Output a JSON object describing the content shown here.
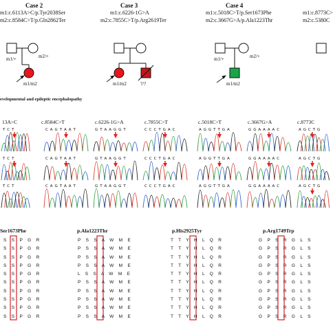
{
  "colors": {
    "affected_female": "#e8151b",
    "affected_male_deceased": "#c8141a",
    "affected_male": "#1aa54a",
    "box": "#d11e26",
    "arrow": "#e2231a",
    "trace_a": "#2e9e3e",
    "trace_c": "#3060c8",
    "trace_g": "#222222",
    "trace_t": "#d63a2f"
  },
  "cases": [
    {
      "title": "Case 2",
      "m1": "m1:c.6113A>C/p.Tyr2038Ser",
      "m2": "m2:c.8584C>T/p.Gln2862Ter",
      "father": "m1/+",
      "mother": "m2/+",
      "child": "m1/m2"
    },
    {
      "title": "Case 3",
      "m1": "m1:c.6226-1G>A",
      "m2": "m2:c.7855C>T/p.Arg2619Ter",
      "child1": "m1/m2",
      "child2": "?/?"
    },
    {
      "title": "Case 4",
      "m1": "m1:c.5018C>T/p.Ser1673Phe",
      "m2": "m2:c.3667G>A/p.Ala1223Thr",
      "father": "m1/+",
      "mother": "m2/+",
      "child": "m1/m2"
    },
    {
      "m1": "m1:c.8773C>",
      "m2": "m2:c.5380C"
    }
  ],
  "legend_text": "evelopmental and epileptic encephalopathy",
  "chrom_columns": [
    {
      "title": "13A>C",
      "seq": "T C T"
    },
    {
      "title": "c.8584C>T",
      "seq": "C A G T A A T"
    },
    {
      "title": "c.6226-1G>A",
      "seq": "G T A A G G T"
    },
    {
      "title": "c.7855C>T",
      "seq": "C C C T G A C"
    },
    {
      "title": "c.5018C>T",
      "seq": "A G G T T G A"
    },
    {
      "title": "c.3667G>A",
      "seq": "G G A A A A C"
    },
    {
      "title": "c.8773C",
      "seq": "A G C T G"
    }
  ],
  "aa_panels": [
    {
      "title": "Ser1673Phe",
      "rows": [
        "SSPGR",
        "SSPGR",
        "SSPGR",
        "SSPGR",
        "SSPGR",
        "SSPGR",
        "SSPGR",
        "SSPGR",
        "SSPGR",
        "SSPGR"
      ]
    },
    {
      "title": "p.Ala1223Thr",
      "rows": [
        "PSSAWME",
        "PSSAWME",
        "PSSAWME",
        "PSSAWME",
        "LSSAWME",
        "PSSAWME",
        "PSSAWME",
        "PSSAWME",
        "PSSAWME",
        "PSSAWME"
      ]
    },
    {
      "title": "p.His2925Tyr",
      "rows": [
        "TTYHLQR",
        "TTYHLQR",
        "TTYHLQR",
        "TTYHLQR",
        "TTYHLQR",
        "TTYHLQR",
        "TTYHLQR",
        "TTYHLQR",
        "TTYHLQR",
        "TTYHLQR"
      ]
    },
    {
      "title": "p.Arg1749Trp",
      "rows": [
        "GPSRGLS",
        "GPSRGLS",
        "GPSRGLS",
        "GPSRGLS",
        "GPSRGLS",
        "GPSRGLS",
        "GPSRGLS",
        "GPSRGLS",
        "GPSRGLS",
        "GPSRGLS"
      ]
    }
  ]
}
